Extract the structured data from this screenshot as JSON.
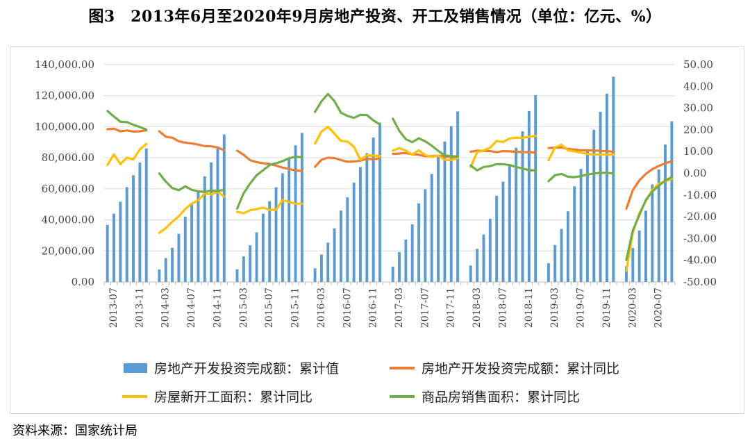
{
  "figure_title": "图3　2013年6月至2020年9月房地产投资、开工及销售情况（单位：亿元、%）",
  "source_note": "资料来源：国家统计局",
  "chart_data": {
    "type": "bar+line",
    "title": "",
    "x_tick_labels": [
      "2013-07",
      "2013-11",
      "2014-03",
      "2014-07",
      "2014-11",
      "2015-03",
      "2015-07",
      "2015-11",
      "2016-03",
      "2016-07",
      "2016-11",
      "2017-03",
      "2017-07",
      "2017-11",
      "2018-03",
      "2018-07",
      "2018-11",
      "2019-03",
      "2019-07",
      "2019-11",
      "2020-03",
      "2020-07"
    ],
    "left_axis": {
      "min": 0,
      "max": 140000,
      "step": 20000,
      "tick_labels": [
        "0.00",
        "20,000.00",
        "40,000.00",
        "60,000.00",
        "80,000.00",
        "100,000.00",
        "120,000.00",
        "140,000.00"
      ]
    },
    "right_axis": {
      "min": -50,
      "max": 50,
      "step": 10,
      "tick_labels": [
        "-50.00",
        "-40.00",
        "-30.00",
        "-20.00",
        "-10.00",
        "0.00",
        "10.00",
        "20.00",
        "30.00",
        "40.00",
        "50.00"
      ]
    },
    "grid": true,
    "legend_position": "bottom",
    "colors": {
      "bars": "#5b9bd5",
      "investment_yoy": "#ed7d31",
      "new_starts_yoy": "#ffc000",
      "sales_area_yoy": "#70ad47"
    },
    "x": [
      "2013-06",
      "2013-07",
      "2013-08",
      "2013-09",
      "2013-10",
      "2013-11",
      "2013-12",
      "2014-01",
      "2014-02",
      "2014-03",
      "2014-04",
      "2014-05",
      "2014-06",
      "2014-07",
      "2014-08",
      "2014-09",
      "2014-10",
      "2014-11",
      "2014-12",
      "2015-01",
      "2015-02",
      "2015-03",
      "2015-04",
      "2015-05",
      "2015-06",
      "2015-07",
      "2015-08",
      "2015-09",
      "2015-10",
      "2015-11",
      "2015-12",
      "2016-01",
      "2016-02",
      "2016-03",
      "2016-04",
      "2016-05",
      "2016-06",
      "2016-07",
      "2016-08",
      "2016-09",
      "2016-10",
      "2016-11",
      "2016-12",
      "2017-01",
      "2017-02",
      "2017-03",
      "2017-04",
      "2017-05",
      "2017-06",
      "2017-07",
      "2017-08",
      "2017-09",
      "2017-10",
      "2017-11",
      "2017-12",
      "2018-01",
      "2018-02",
      "2018-03",
      "2018-04",
      "2018-05",
      "2018-06",
      "2018-07",
      "2018-08",
      "2018-09",
      "2018-10",
      "2018-11",
      "2018-12",
      "2019-01",
      "2019-02",
      "2019-03",
      "2019-04",
      "2019-05",
      "2019-06",
      "2019-07",
      "2019-08",
      "2019-09",
      "2019-10",
      "2019-11",
      "2019-12",
      "2020-01",
      "2020-02",
      "2020-03",
      "2020-04",
      "2020-05",
      "2020-06",
      "2020-07",
      "2020-08",
      "2020-09"
    ],
    "series": [
      {
        "name": "房地产开发投资完成额：累计值",
        "kind": "bar",
        "axis": "left",
        "values": [
          36800,
          44000,
          51700,
          61100,
          68700,
          76900,
          86000,
          null,
          8000,
          15400,
          22000,
          31000,
          42000,
          50000,
          58000,
          68000,
          77000,
          86000,
          95000,
          null,
          8200,
          16500,
          23600,
          32000,
          44000,
          52000,
          61000,
          70000,
          80000,
          88000,
          96000,
          null,
          8800,
          17700,
          25300,
          34500,
          46000,
          54500,
          64000,
          74000,
          83000,
          93000,
          102600,
          null,
          9900,
          19300,
          27300,
          37100,
          50600,
          59700,
          69600,
          80600,
          90500,
          100400,
          109800,
          null,
          10600,
          21300,
          30600,
          40700,
          55500,
          64600,
          75000,
          86400,
          97000,
          110100,
          120300,
          null,
          12100,
          23800,
          34200,
          45500,
          61600,
          72800,
          84600,
          98000,
          109600,
          121300,
          132200,
          null,
          10100,
          21900,
          33100,
          45900,
          62800,
          72400,
          88500,
          103500
        ]
      },
      {
        "name": "房地产开发投资完成额：累计同比",
        "kind": "line",
        "axis": "right",
        "values": [
          20.3,
          20.5,
          19.3,
          19.7,
          19.2,
          19.3,
          19.8,
          null,
          19.3,
          16.8,
          16.4,
          14.7,
          14.1,
          13.7,
          13.2,
          12.5,
          12.4,
          11.9,
          10.5,
          null,
          10.4,
          8.5,
          6.0,
          5.1,
          4.6,
          4.3,
          3.5,
          2.6,
          2.0,
          1.3,
          1.0,
          null,
          3.0,
          6.2,
          7.2,
          7.0,
          6.1,
          5.3,
          5.4,
          5.8,
          6.6,
          6.5,
          6.9,
          null,
          8.9,
          9.1,
          9.3,
          8.8,
          8.5,
          7.9,
          7.9,
          8.1,
          7.8,
          7.5,
          7.0,
          null,
          9.9,
          10.4,
          10.3,
          10.2,
          9.7,
          10.2,
          10.1,
          9.9,
          9.7,
          9.7,
          9.5,
          null,
          11.6,
          11.8,
          11.9,
          11.2,
          10.9,
          10.6,
          10.5,
          10.5,
          10.3,
          10.2,
          9.9,
          null,
          -16.3,
          -7.7,
          -3.3,
          -0.3,
          1.9,
          3.4,
          4.6,
          5.6
        ]
      },
      {
        "name": "房屋新开工面积：累计同比",
        "kind": "line",
        "axis": "right",
        "values": [
          3.8,
          8.7,
          4.2,
          7.2,
          6.4,
          11.0,
          13.5,
          null,
          -27.4,
          -25.2,
          -22.3,
          -19.8,
          -16.4,
          -14.0,
          -12.4,
          -9.3,
          -9.7,
          -8.5,
          -10.7,
          null,
          -17.8,
          -18.4,
          -17.0,
          -16.5,
          -15.8,
          -16.8,
          -16.8,
          -12.3,
          -13.2,
          -14.0,
          -14.0,
          null,
          13.7,
          19.2,
          21.4,
          18.2,
          14.9,
          14.6,
          12.2,
          6.2,
          8.3,
          8.1,
          7.9,
          null,
          10.4,
          11.6,
          10.4,
          8.5,
          10.6,
          8.3,
          7.6,
          8.1,
          6.2,
          6.1,
          7.0,
          null,
          2.9,
          9.7,
          10.5,
          11.8,
          14.9,
          14.4,
          16.0,
          16.4,
          16.3,
          16.8,
          17.2,
          null,
          6.0,
          11.9,
          13.1,
          10.5,
          10.1,
          9.5,
          8.9,
          8.6,
          8.6,
          8.6,
          8.5,
          null,
          -44.9,
          -27.2,
          -18.4,
          -12.8,
          -7.6,
          -4.9,
          -3.6,
          -2.6
        ]
      },
      {
        "name": "商品房销售面积：累计同比",
        "kind": "line",
        "axis": "right",
        "values": [
          28.7,
          26.1,
          23.7,
          23.5,
          22.3,
          21.3,
          20.1,
          null,
          -0.1,
          -3.8,
          -6.8,
          -7.8,
          -6.0,
          -7.6,
          -8.3,
          -8.6,
          -8.0,
          -8.1,
          -7.6,
          null,
          -16.3,
          -9.2,
          -4.7,
          -0.9,
          1.4,
          3.8,
          4.6,
          5.6,
          6.9,
          7.6,
          7.4,
          null,
          28.2,
          33.1,
          36.5,
          33.2,
          27.9,
          26.4,
          25.5,
          26.9,
          26.8,
          24.3,
          22.5,
          null,
          25.1,
          19.5,
          15.7,
          14.3,
          16.1,
          14.7,
          12.7,
          10.3,
          8.2,
          7.9,
          7.7,
          null,
          3.6,
          1.3,
          2.9,
          3.3,
          4.2,
          4.2,
          3.8,
          2.9,
          2.2,
          1.4,
          1.3,
          null,
          -3.6,
          -0.9,
          -0.3,
          -1.6,
          -1.8,
          -1.3,
          -0.6,
          -0.1,
          0.2,
          0.2,
          -0.1,
          null,
          -39.9,
          -26.3,
          -19.3,
          -12.3,
          -8.4,
          -5.8,
          -3.3,
          -1.8
        ]
      }
    ]
  }
}
